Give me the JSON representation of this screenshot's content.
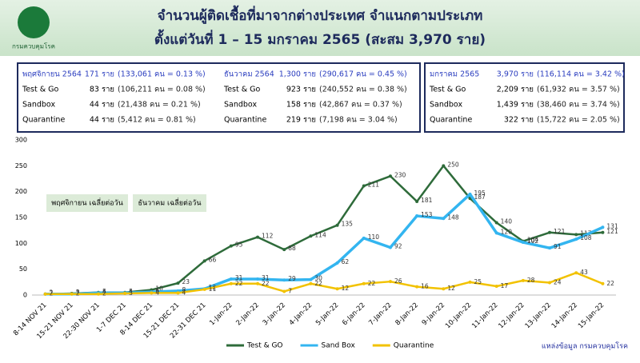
{
  "header": {
    "title": "จำนวนผู้ติดเชื้อที่มาจากต่างประเทศ จำแนกตามประเภท",
    "subtitle": "ตั้งแต่วันที่  1 – 15  มกราคม  2565 (สะสม 3,970 ราย)",
    "logo_text": "กรมควบคุมโรค"
  },
  "summary": [
    {
      "rows": [
        {
          "label": "พฤศจิกายน 2564",
          "count": "171 ราย",
          "detail": "(133,061 คน = 0.13 %)"
        },
        {
          "label": "Test & Go",
          "count": "83  ราย",
          "detail": "(106,211 คน = 0.08 %)"
        },
        {
          "label": "Sandbox",
          "count": "44  ราย",
          "detail": "(21,438 คน = 0.21 %)"
        },
        {
          "label": "Quarantine",
          "count": "44  ราย",
          "detail": "(5,412 คน  = 0.81 %)"
        }
      ]
    },
    {
      "rows": [
        {
          "label": "ธันวาคม 2564",
          "count": "1,300 ราย",
          "detail": "(290,617 คน = 0.45 %)"
        },
        {
          "label": "Test & Go",
          "count": "923  ราย",
          "detail": "(240,552 คน = 0.38 %)"
        },
        {
          "label": "Sandbox",
          "count": "158  ราย",
          "detail": "(42,867 คน  = 0.37 %)"
        },
        {
          "label": "Quarantine",
          "count": "219  ราย",
          "detail": "(7,198 คน  = 3.04 %)"
        }
      ]
    },
    {
      "rows": [
        {
          "label": "มกราคม 2565",
          "count": "3,970 ราย",
          "detail": "(116,114 คน = 3.42 %)"
        },
        {
          "label": "Test & Go",
          "count": "2,209 ราย",
          "detail": "(61,932 คน = 3.57 %)"
        },
        {
          "label": "Sandbox",
          "count": "1,439 ราย",
          "detail": "(38,460 คน = 3.74 %)"
        },
        {
          "label": "Quarantine",
          "count": "322  ราย",
          "detail": "(15,722 คน = 2.05 %)"
        }
      ]
    }
  ],
  "chart_data": {
    "type": "line",
    "categories": [
      "8-14 NOV 21",
      "15-21 NOV 21",
      "22-30 NOV 21",
      "1-7 DEC 21",
      "8-14 DEC 21",
      "15-21 DEC 21",
      "22-31 DEC 21",
      "1-Jan-22",
      "2-Jan-22",
      "3-Jan-22",
      "4-Jan-22",
      "5-Jan-22",
      "6-Jan-22",
      "7-Jan-22",
      "8-Jan-22",
      "9-Jan-22",
      "10-Jan-22",
      "11-Jan-22",
      "12-Jan-22",
      "13-Jan-22",
      "14-Jan-22",
      "15-Jan-22"
    ],
    "series": [
      {
        "name": "Test & GO",
        "color": "#2e6b3a",
        "values": [
          2,
          3,
          5,
          5,
          10,
          23,
          66,
          95,
          112,
          88,
          114,
          135,
          211,
          230,
          181,
          250,
          187,
          140,
          104,
          121,
          117,
          121
        ]
      },
      {
        "name": "Sand Box",
        "color": "#33b5f0",
        "values": [
          2,
          2,
          4,
          4,
          6,
          8,
          12,
          31,
          31,
          29,
          30,
          62,
          110,
          92,
          153,
          148,
          195,
          120,
          102,
          91,
          108,
          131
        ]
      },
      {
        "name": "Quarantine",
        "color": "#f2c200",
        "values": [
          2,
          2,
          2,
          3,
          4,
          4,
          11,
          22,
          22,
          7,
          22,
          12,
          22,
          26,
          16,
          12,
          25,
          17,
          28,
          24,
          43,
          22
        ]
      }
    ],
    "ylim": [
      0,
      300
    ],
    "yticks": [
      0,
      50,
      100,
      150,
      200,
      250,
      300
    ],
    "grid": false,
    "legend": "bottom",
    "annotations": [
      "พฤศจิกายน เฉลี่ยต่อวัน",
      "ธันวาคม เฉลี่ยต่อวัน"
    ],
    "source": "แหล่งข้อมูล กรมควบคุมโรค"
  }
}
